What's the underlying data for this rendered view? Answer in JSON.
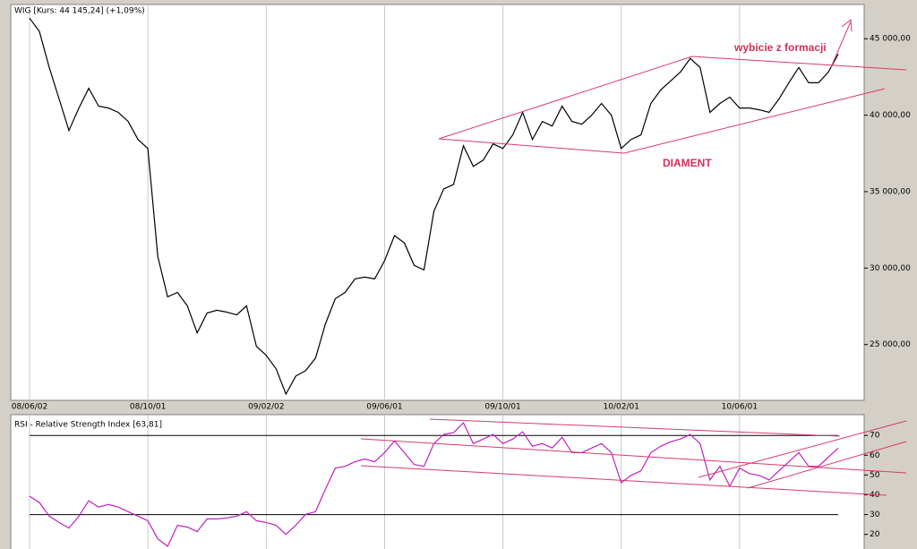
{
  "chart_data": [
    {
      "type": "line",
      "title": "WIG [Kurs: 44 145,24] (+1,09%)",
      "categories": [
        "08/06/02",
        null,
        null,
        null,
        null,
        null,
        null,
        null,
        null,
        null,
        null,
        null,
        "08/10/01",
        null,
        null,
        null,
        null,
        null,
        null,
        null,
        null,
        null,
        null,
        null,
        "09/02/02",
        null,
        null,
        null,
        null,
        null,
        null,
        null,
        null,
        null,
        null,
        null,
        "09/06/01",
        null,
        null,
        null,
        null,
        null,
        null,
        null,
        null,
        null,
        null,
        null,
        "09/10/01",
        null,
        null,
        null,
        null,
        null,
        null,
        null,
        null,
        null,
        null,
        null,
        "10/02/01",
        null,
        null,
        null,
        null,
        null,
        null,
        null,
        null,
        null,
        null,
        null,
        "10/06/01",
        null,
        null,
        null,
        null,
        null,
        null,
        null,
        null,
        null,
        null
      ],
      "series": [
        {
          "color": "#000000",
          "values": [
            46350,
            45470,
            43120,
            41060,
            39000,
            40470,
            41760,
            40590,
            40470,
            40180,
            39590,
            38410,
            37820,
            30760,
            28120,
            28410,
            27530,
            25760,
            27060,
            27240,
            27120,
            26940,
            27530,
            24880,
            24290,
            23410,
            21760,
            22940,
            23290,
            24120,
            26350,
            28000,
            28410,
            29290,
            29410,
            29290,
            30470,
            32120,
            31650,
            30180,
            29880,
            33710,
            35180,
            35470,
            38000,
            36650,
            37060,
            38120,
            37820,
            38710,
            40180,
            38410,
            39590,
            39290,
            40590,
            39590,
            39410,
            40000,
            40770,
            40000,
            37820,
            38410,
            38710,
            40770,
            41650,
            42240,
            42820,
            43710,
            43120,
            40180,
            40770,
            41180,
            40470,
            40470,
            40350,
            40180,
            41060,
            42120,
            43120,
            42120,
            42120,
            42820,
            44000
          ]
        }
      ],
      "ylim": [
        21350,
        47240
      ],
      "yticks": [
        {
          "value": 25000,
          "label": "25 000,00"
        },
        {
          "value": 30000,
          "label": "30 000,00"
        },
        {
          "value": 35000,
          "label": "35 000,00"
        },
        {
          "value": 40000,
          "label": "40 000,00"
        },
        {
          "value": 45000,
          "label": "45 000,00"
        }
      ],
      "annotations": [
        "wybicie z formacji",
        "DIAMENT"
      ]
    },
    {
      "type": "line",
      "title": "RSI - Relative Strength Index [63,81]",
      "series": [
        {
          "color": "#c020c0",
          "values": [
            39.3,
            36.1,
            29.2,
            26.0,
            23.2,
            29.2,
            37.0,
            33.8,
            35.1,
            33.8,
            31.5,
            29.2,
            26.9,
            17.7,
            14.0,
            24.6,
            23.7,
            21.4,
            27.8,
            27.8,
            28.3,
            29.2,
            31.5,
            26.9,
            26.0,
            24.6,
            20.0,
            24.6,
            30.1,
            31.5,
            42.9,
            53.5,
            54.4,
            56.7,
            58.1,
            56.7,
            61.3,
            67.2,
            61.3,
            55.3,
            54.4,
            65.9,
            70.5,
            71.4,
            76.4,
            65.9,
            68.2,
            70.5,
            65.9,
            68.2,
            71.8,
            64.5,
            65.9,
            63.6,
            69.1,
            61.3,
            61.3,
            63.6,
            65.9,
            61.3,
            46.1,
            49.8,
            52.1,
            61.3,
            64.5,
            66.8,
            68.2,
            70.5,
            65.9,
            47.5,
            54.4,
            44.3,
            53.5,
            50.7,
            49.8,
            47.5,
            52.1,
            56.7,
            61.3,
            54.4,
            54.4,
            59.0,
            63.6
          ]
        }
      ],
      "ylim": [
        11.7,
        80.5
      ],
      "yticks": [
        20,
        30,
        40,
        50,
        60,
        70
      ],
      "reference_lines": [
        30,
        70
      ]
    }
  ]
}
